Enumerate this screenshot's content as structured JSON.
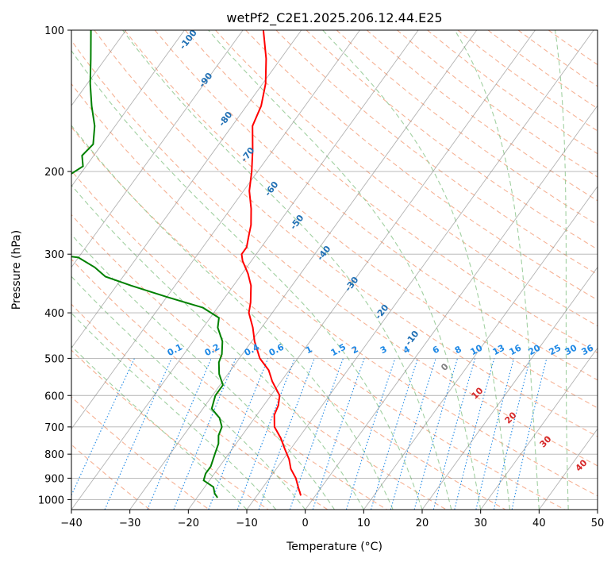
{
  "chart_data": {
    "type": "line",
    "subtype": "skew-t log-p diagram",
    "title": "wetPf2_C2E1.2025.206.12.44.E25",
    "xlabel": "Temperature (°C)",
    "ylabel": "Pressure (hPa)",
    "xlim": [
      -40,
      50
    ],
    "ylim": [
      1050,
      100
    ],
    "y_scale": "log",
    "grid": true,
    "x_ticks": [
      "−40",
      "−30",
      "−20",
      "−10",
      "0",
      "10",
      "20",
      "30",
      "40",
      "50"
    ],
    "x_tick_values": [
      -40,
      -30,
      -20,
      -10,
      0,
      10,
      20,
      30,
      40,
      50
    ],
    "y_ticks": [
      "100",
      "200",
      "300",
      "400",
      "500",
      "600",
      "700",
      "800",
      "900",
      "1000"
    ],
    "y_tick_values": [
      100,
      200,
      300,
      400,
      500,
      600,
      700,
      800,
      900,
      1000
    ],
    "series": [
      {
        "color": "#ff0000",
        "p": [
          100,
          115,
          130,
          145,
          160,
          180,
          200,
          220,
          240,
          260,
          275,
          290,
          300,
          310,
          330,
          350,
          380,
          400,
          430,
          460,
          500,
          530,
          560,
          600,
          630,
          660,
          700,
          740,
          780,
          820,
          860,
          900,
          940,
          980
        ],
        "t": [
          -66.5,
          -62.5,
          -59.5,
          -57.5,
          -56.5,
          -53.5,
          -51,
          -49,
          -46.5,
          -44.5,
          -43.5,
          -42.5,
          -42.5,
          -41.5,
          -39,
          -37,
          -35,
          -34,
          -31.5,
          -29.5,
          -26.5,
          -23.5,
          -21.5,
          -18.5,
          -17.5,
          -17,
          -15.5,
          -13,
          -11,
          -9,
          -7.5,
          -5.5,
          -4,
          -2.5
        ]
      },
      {
        "color": "#008000",
        "p": [
          100,
          115,
          130,
          145,
          160,
          175,
          185,
          195,
          205,
          215,
          225,
          235,
          245,
          255,
          265,
          275,
          285,
          295,
          305,
          320,
          335,
          350,
          370,
          390,
          410,
          430,
          460,
          490,
          510,
          540,
          570,
          600,
          640,
          670,
          700,
          730,
          760,
          790,
          820,
          850,
          880,
          910,
          940,
          970,
          990
        ],
        "t": [
          -96,
          -92.5,
          -89.5,
          -86.5,
          -83.5,
          -81.5,
          -82,
          -80.5,
          -82,
          -86,
          -90,
          -87.5,
          -86,
          -92.5,
          -97.5,
          -99,
          -94,
          -80,
          -70,
          -66,
          -63,
          -57.5,
          -50,
          -42.5,
          -38.5,
          -37.5,
          -35,
          -33.5,
          -33,
          -31.5,
          -29.5,
          -29.5,
          -28.5,
          -26,
          -24.5,
          -24,
          -23,
          -22.5,
          -22,
          -21.5,
          -21.5,
          -21,
          -18.5,
          -17.5,
          -16.5
        ]
      }
    ],
    "dry_adiabat_labels": [
      "-100",
      "-90",
      "-80",
      "-70",
      "-60",
      "-50",
      "-40",
      "-30",
      "-20",
      "-10"
    ],
    "moist_adiabat_labels": [
      "0",
      "10",
      "20",
      "30",
      "40"
    ],
    "mixing_ratio_labels": [
      "0.1",
      "0.2",
      "0.4",
      "0.6",
      "1",
      "1.5",
      "2",
      "3",
      "4",
      "6",
      "8",
      "10",
      "13",
      "16",
      "20",
      "25",
      "30",
      "36"
    ],
    "colors": {
      "temperature": "#ff0000",
      "dewpoint": "#008000",
      "dry_adiabat": "#f4a582",
      "moist_adiabat": "#90c890",
      "mixing_ratio": "#1e88e5",
      "isotherm": "#808080",
      "dry_adiabat_label": "#1f6fb4",
      "moist_adiabat_label": "#d62728",
      "zero_label": "#808080"
    }
  }
}
